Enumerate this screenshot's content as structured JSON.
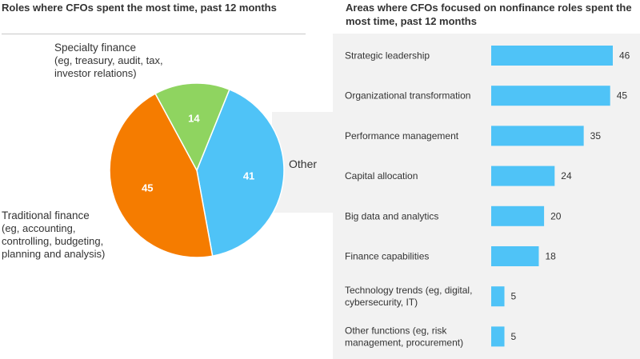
{
  "left": {
    "title": "Roles where CFOs spent the most time, past 12 months",
    "labels": {
      "specialty": [
        "Specialty finance",
        "(eg, treasury, audit, tax,",
        "investor relations)"
      ],
      "traditional": [
        "Traditional finance",
        "(eg, accounting,",
        "controlling, budgeting,",
        "planning and analysis)"
      ],
      "other": "Other"
    }
  },
  "right": {
    "title": "Areas where CFOs focused on nonfinance roles spent the most time, past 12 months"
  },
  "colors": {
    "other": "#4fc3f7",
    "traditional": "#f57c00",
    "specialty": "#8fd460",
    "bar": "#4fc3f7",
    "panel": "#f2f2f2"
  },
  "chart_data": [
    {
      "type": "pie",
      "slices": [
        {
          "label": "Other",
          "value": 41
        },
        {
          "label": "Traditional finance",
          "value": 45
        },
        {
          "label": "Specialty finance",
          "value": 14
        }
      ]
    },
    {
      "type": "bar",
      "orientation": "horizontal",
      "categories": [
        [
          "Strategic leadership"
        ],
        [
          "Organizational transformation"
        ],
        [
          "Performance management"
        ],
        [
          "Capital allocation"
        ],
        [
          "Big data and analytics"
        ],
        [
          "Finance capabilities"
        ],
        [
          "Technology trends (eg, digital,",
          "cybersecurity, IT)"
        ],
        [
          "Other functions (eg, risk",
          "management, procurement)"
        ]
      ],
      "values": [
        46,
        45,
        35,
        24,
        20,
        18,
        5,
        5
      ]
    }
  ]
}
